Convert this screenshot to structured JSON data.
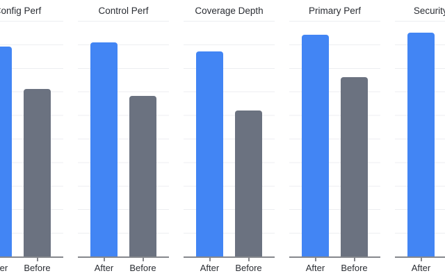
{
  "chart_data": {
    "type": "bar",
    "layout": "faceted small multiples, horizontal row, first and last facets clipped by viewport",
    "categories": [
      "After",
      "Before"
    ],
    "series_colors": {
      "after": "#4285F4",
      "before": "#6B7280"
    },
    "ylim": [
      0,
      1
    ],
    "grid": "horizontal gridlines every 0.1, no y tick labels visible",
    "axis_color": "#85878c",
    "gridline_color": "#eceef1",
    "facets": [
      {
        "title": "Config Perf",
        "values": {
          "after": 0.89,
          "before": 0.71
        }
      },
      {
        "title": "Control Perf",
        "values": {
          "after": 0.91,
          "before": 0.68
        }
      },
      {
        "title": "Coverage Depth",
        "values": {
          "after": 0.87,
          "before": 0.62
        }
      },
      {
        "title": "Primary Perf",
        "values": {
          "after": 0.94,
          "before": 0.76
        }
      },
      {
        "title": "Security Perf",
        "values": {
          "after": 0.95,
          "before": null
        }
      }
    ]
  }
}
